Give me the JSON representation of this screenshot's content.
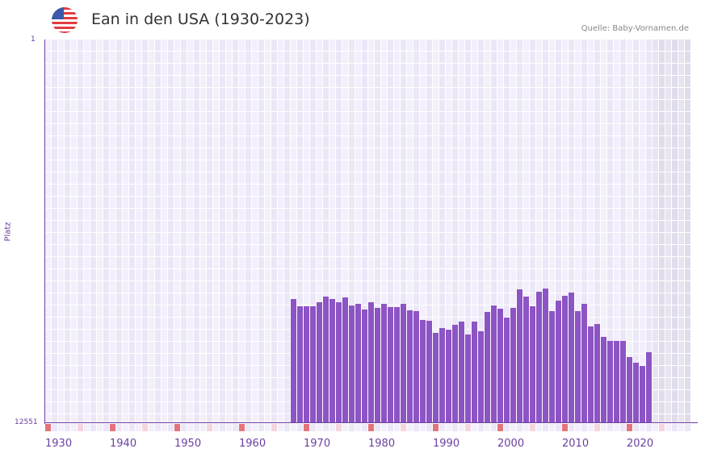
{
  "header": {
    "title": "Ean in den USA (1930-2023)",
    "source": "Quelle: Baby-Vornamen.de",
    "flag_icon": "us-flag-icon"
  },
  "axis": {
    "y_top_label": "1",
    "y_bottom_label": "12551",
    "y_title": "Platz",
    "x_labels": [
      "1930",
      "1940",
      "1950",
      "1960",
      "1970",
      "1980",
      "1990",
      "2000",
      "2010",
      "2020"
    ]
  },
  "colors": {
    "bar": "#8c54c4",
    "axis": "#6b3fa0",
    "grid_a": "#f3effb",
    "grid_b": "#ece7f7",
    "future_a": "#e8e4f0",
    "future_b": "#e1dcec",
    "marker_decade": "#e5737a",
    "marker_half": "#f5d5dd"
  },
  "chart_data": {
    "type": "bar",
    "title": "Ean in den USA (1930-2023)",
    "xlabel": "",
    "ylabel": "Platz",
    "ylim": [
      12551,
      1
    ],
    "y_inverted": true,
    "x_range": [
      1930,
      2029
    ],
    "categories": [
      1968,
      1969,
      1970,
      1971,
      1972,
      1973,
      1974,
      1975,
      1976,
      1977,
      1978,
      1979,
      1980,
      1981,
      1982,
      1983,
      1984,
      1985,
      1986,
      1987,
      1988,
      1989,
      1990,
      1991,
      1992,
      1993,
      1994,
      1995,
      1996,
      1997,
      1998,
      1999,
      2000,
      2001,
      2002,
      2003,
      2004,
      2005,
      2006,
      2007,
      2008,
      2009,
      2010,
      2011,
      2012,
      2013,
      2014,
      2015,
      2016,
      2017,
      2018,
      2019,
      2020,
      2021,
      2022,
      2023
    ],
    "values": [
      8492,
      8729,
      8729,
      8729,
      8597,
      8413,
      8492,
      8597,
      8439,
      8703,
      8650,
      8835,
      8597,
      8782,
      8650,
      8756,
      8756,
      8650,
      8861,
      8887,
      9177,
      9203,
      9599,
      9441,
      9494,
      9335,
      9230,
      9652,
      9230,
      9546,
      8914,
      8703,
      8808,
      9098,
      8782,
      8175,
      8413,
      8729,
      8255,
      8149,
      8887,
      8544,
      8386,
      8281,
      8887,
      8650,
      9388,
      9309,
      9731,
      9863,
      9863,
      9863,
      10390,
      10575,
      10681,
      10233
    ]
  }
}
